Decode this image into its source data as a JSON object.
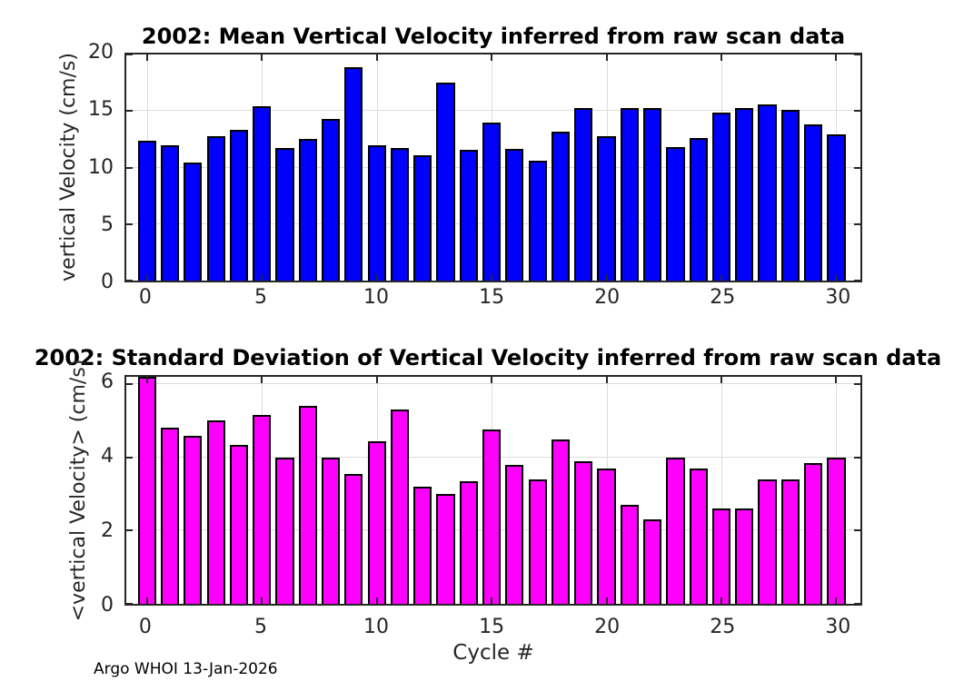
{
  "footer": {
    "text": "Argo WHOI 13-Jan-2026"
  },
  "chart_data": [
    {
      "type": "bar",
      "title": "2002: Mean Vertical Velocity inferred from raw scan data",
      "xlabel": "",
      "ylabel": "vertical Velocity (cm/s)",
      "x": [
        0,
        1,
        2,
        3,
        4,
        5,
        6,
        7,
        8,
        9,
        10,
        11,
        12,
        13,
        14,
        15,
        16,
        17,
        18,
        19,
        20,
        21,
        22,
        23,
        24,
        25,
        26,
        27,
        28,
        29,
        30
      ],
      "values": [
        12.35,
        11.95,
        10.45,
        12.8,
        13.35,
        15.4,
        11.7,
        12.5,
        14.3,
        18.9,
        11.95,
        11.75,
        11.05,
        17.5,
        11.6,
        14.0,
        11.65,
        10.6,
        13.15,
        15.3,
        12.75,
        15.3,
        15.3,
        11.8,
        12.6,
        14.9,
        15.3,
        15.6,
        15.1,
        13.8,
        12.9
      ],
      "bar_color": "#0000ff",
      "bar_edge_color": "#000000",
      "xlim": [
        -0.9,
        31.05
      ],
      "ylim": [
        0,
        20
      ],
      "xticks": [
        0,
        5,
        10,
        15,
        20,
        25,
        30
      ],
      "yticks": [
        0,
        5,
        10,
        15,
        20
      ],
      "grid": true,
      "legend": null
    },
    {
      "type": "bar",
      "title": "2002: Standard Deviation of Vertical Velocity inferred from raw scan data",
      "xlabel": "Cycle #",
      "ylabel": "<vertical Velocity> (cm/s)",
      "x": [
        0,
        1,
        2,
        3,
        4,
        5,
        6,
        7,
        8,
        9,
        10,
        11,
        12,
        13,
        14,
        15,
        16,
        17,
        18,
        19,
        20,
        21,
        22,
        23,
        24,
        25,
        26,
        27,
        28,
        29,
        30
      ],
      "values": [
        6.2,
        4.8,
        4.6,
        5.0,
        4.35,
        5.15,
        4.0,
        5.4,
        4.0,
        3.55,
        4.45,
        5.3,
        3.2,
        3.0,
        3.35,
        4.75,
        3.8,
        3.4,
        4.5,
        3.9,
        3.7,
        2.7,
        2.3,
        4.0,
        3.7,
        2.6,
        2.6,
        3.4,
        3.4,
        3.85,
        4.0
      ],
      "bar_color": "#ff00ff",
      "bar_edge_color": "#000000",
      "xlim": [
        -0.9,
        31.05
      ],
      "ylim": [
        0,
        6.2
      ],
      "xticks": [
        0,
        5,
        10,
        15,
        20,
        25,
        30
      ],
      "yticks": [
        0,
        2,
        4,
        6
      ],
      "grid": true,
      "legend": null
    }
  ]
}
